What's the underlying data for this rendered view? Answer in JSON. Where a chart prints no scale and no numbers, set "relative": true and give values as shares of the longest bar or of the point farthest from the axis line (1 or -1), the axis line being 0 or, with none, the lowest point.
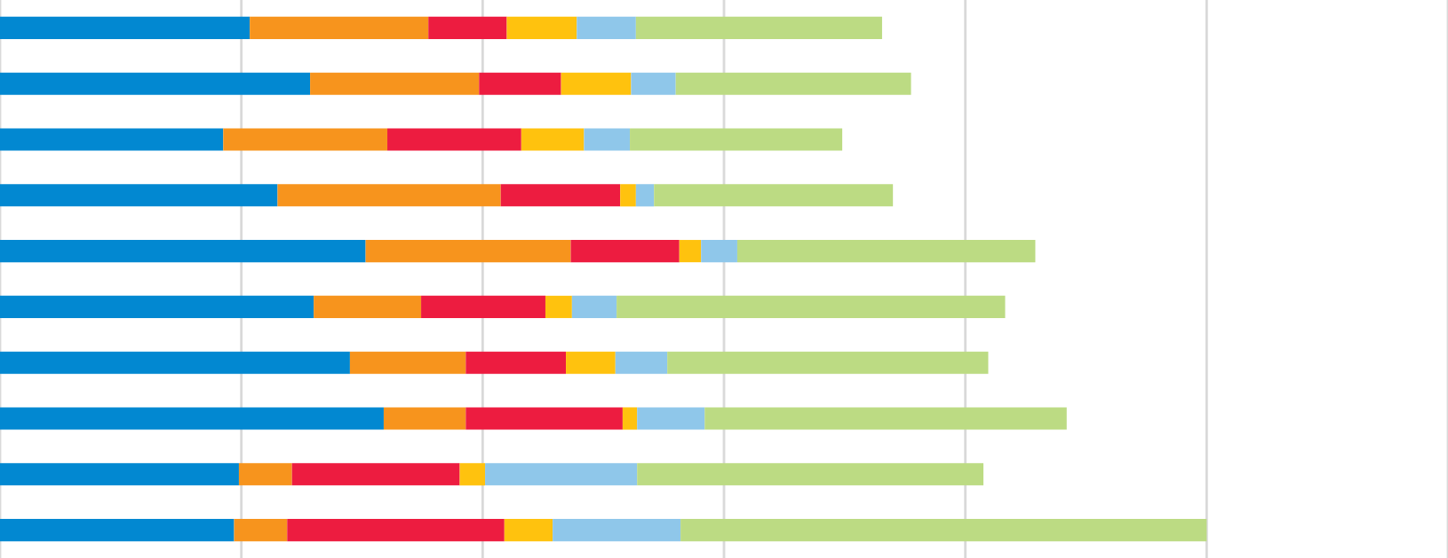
{
  "chart_data": {
    "type": "bar",
    "orientation": "horizontal",
    "stacked": true,
    "relative": true,
    "grid": "x",
    "categories": [
      null,
      null,
      null,
      null,
      null,
      null,
      null,
      null,
      null,
      null
    ],
    "series": [
      {
        "color": "#0288d1",
        "values": [
          0.207,
          0.257,
          0.185,
          0.23,
          0.303,
          0.26,
          0.29,
          0.318,
          0.198,
          0.194
        ]
      },
      {
        "color": "#f7941d",
        "values": [
          0.148,
          0.14,
          0.136,
          0.185,
          0.17,
          0.089,
          0.096,
          0.068,
          0.044,
          0.044
        ]
      },
      {
        "color": "#ed1c40",
        "values": [
          0.065,
          0.068,
          0.111,
          0.099,
          0.09,
          0.103,
          0.083,
          0.13,
          0.139,
          0.18
        ]
      },
      {
        "color": "#ffc20e",
        "values": [
          0.058,
          0.058,
          0.052,
          0.013,
          0.018,
          0.022,
          0.041,
          0.012,
          0.021,
          0.04
        ]
      },
      {
        "color": "#8fc7ea",
        "values": [
          0.049,
          0.037,
          0.038,
          0.015,
          0.03,
          0.037,
          0.043,
          0.056,
          0.126,
          0.106
        ]
      },
      {
        "color": "#bcdb83",
        "values": [
          0.204,
          0.195,
          0.176,
          0.198,
          0.247,
          0.322,
          0.266,
          0.3,
          0.287,
          0.436
        ]
      }
    ]
  }
}
